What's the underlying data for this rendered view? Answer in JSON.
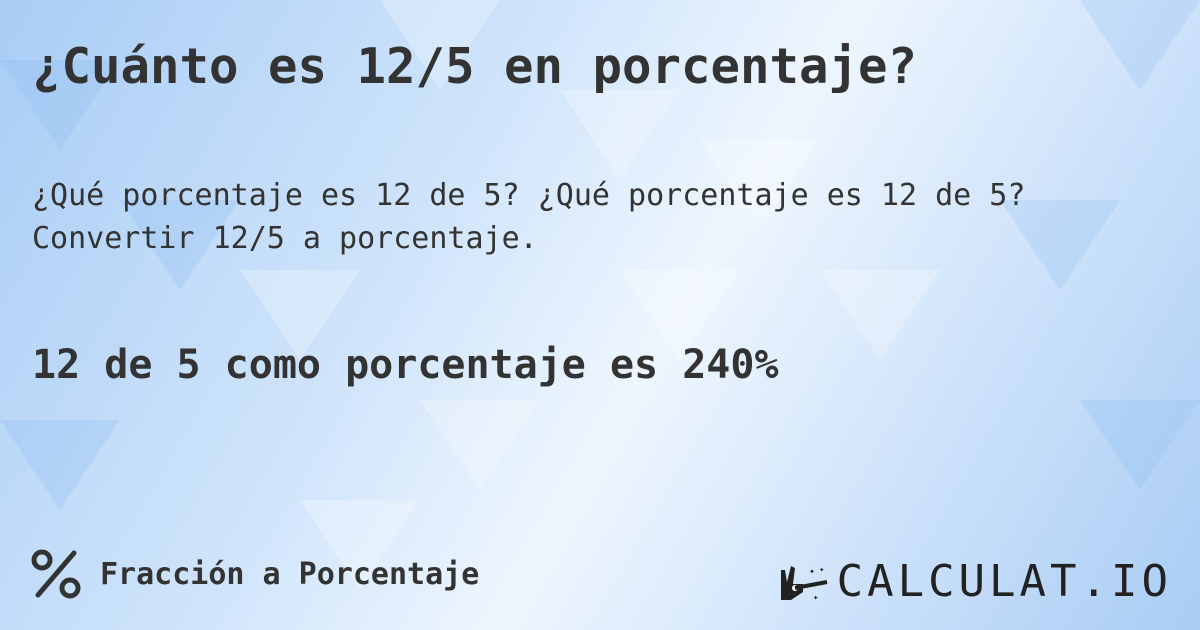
{
  "title": "¿Cuánto es 12/5 en porcentaje?",
  "subtitle_line1": "¿Qué porcentaje es 12 de 5? ¿Qué porcentaje es 12 de 5?",
  "subtitle_line2": "Convertir 12/5 a porcentaje.",
  "answer": "12 de 5 como porcentaje es 240%",
  "footer": {
    "icon": "percent-icon",
    "label": "Fracción a Porcentaje"
  },
  "logo": {
    "text": "CALCULAT.IO",
    "icon": "magic-hand-icon"
  },
  "colors": {
    "text": "#333333",
    "background": "#cfe4fb"
  }
}
